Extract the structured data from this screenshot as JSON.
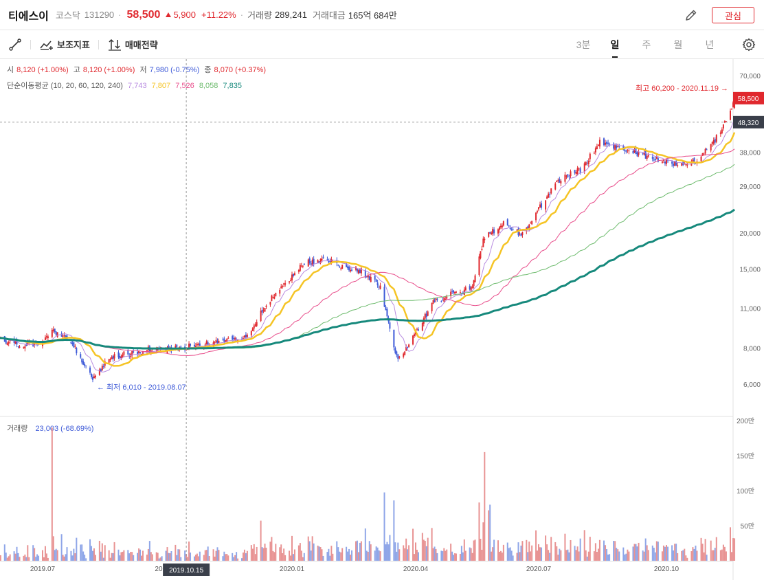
{
  "header": {
    "name": "티에스이",
    "market": "코스닥",
    "code": "131290",
    "price": "58,500",
    "change": "5,900",
    "change_pct": "+11.22%",
    "volume_label": "거래량",
    "volume": "289,241",
    "amount_label": "거래대금",
    "amount": "165억 684만",
    "interest_label": "관심"
  },
  "toolbar": {
    "indicator_label": "보조지표",
    "strategy_label": "매매전략",
    "periods": [
      "3분",
      "일",
      "주",
      "월",
      "년"
    ],
    "active_period": "일"
  },
  "legend": {
    "open_label": "시",
    "open": "8,120 (+1.00%)",
    "high_label": "고",
    "high": "8,120 (+1.00%)",
    "low_label": "저",
    "low": "7,980 (-0.75%)",
    "close_label": "종",
    "close": "8,070 (+0.37%)",
    "ma_label": "단순이동평균 (10, 20, 60, 120, 240)",
    "ma_values": [
      "7,743",
      "7,807",
      "7,526",
      "8,058",
      "7,835"
    ],
    "volume_label": "거래량",
    "volume_value": "23,003 (-68.69%)"
  },
  "chart_data": {
    "type": "candlestick",
    "price_axis": {
      "scale": "log",
      "range": [
        4800,
        76000
      ],
      "ticks": [
        6000,
        8000,
        11000,
        15000,
        20000,
        29000,
        38000,
        70000
      ],
      "tick_labels": [
        "6,000",
        "8,000",
        "11,000",
        "15,000",
        "20,000",
        "29,000",
        "38,000",
        "70,000"
      ]
    },
    "x_axis": {
      "ticks": [
        {
          "date": "2019-07-01",
          "label": "2019.07"
        },
        {
          "date": "2019-10-01",
          "label": "2019.10"
        },
        {
          "date": "2020-01-01",
          "label": "2020.01"
        },
        {
          "date": "2020-04-01",
          "label": "2020.04"
        },
        {
          "date": "2020-07-01",
          "label": "2020.07"
        },
        {
          "date": "2020-10-01",
          "label": "2020.10"
        }
      ],
      "crosshair": {
        "date": "2019-10-15",
        "label": "2019.10.15"
      }
    },
    "current_price": {
      "value": 58500,
      "label": "58,500"
    },
    "crosshair_price": {
      "value": 48320,
      "label": "48,320"
    },
    "annotations": {
      "high_text": "최고 60,200 - 2020.11.19",
      "low_text": "최저 6,010 - 2019.08.07"
    },
    "price_path": [
      {
        "date": "2019-05-20",
        "close": 8900
      },
      {
        "date": "2019-06-03",
        "close": 8500
      },
      {
        "date": "2019-06-17",
        "close": 8200
      },
      {
        "date": "2019-07-01",
        "close": 8300
      },
      {
        "date": "2019-07-08",
        "close": 9200
      },
      {
        "date": "2019-07-22",
        "close": 8400
      },
      {
        "date": "2019-08-07",
        "close": 6300
      },
      {
        "date": "2019-08-20",
        "close": 7400
      },
      {
        "date": "2019-09-03",
        "close": 7700
      },
      {
        "date": "2019-09-17",
        "close": 7900
      },
      {
        "date": "2019-10-01",
        "close": 8000
      },
      {
        "date": "2019-10-15",
        "close": 8070
      },
      {
        "date": "2019-11-01",
        "close": 8300
      },
      {
        "date": "2019-11-15",
        "close": 8500
      },
      {
        "date": "2019-11-29",
        "close": 8700
      },
      {
        "date": "2019-12-12",
        "close": 11200
      },
      {
        "date": "2019-12-26",
        "close": 13200
      },
      {
        "date": "2020-01-10",
        "close": 15800
      },
      {
        "date": "2020-01-24",
        "close": 16200
      },
      {
        "date": "2020-02-07",
        "close": 15400
      },
      {
        "date": "2020-02-21",
        "close": 14800
      },
      {
        "date": "2020-03-06",
        "close": 13000
      },
      {
        "date": "2020-03-19",
        "close": 7200
      },
      {
        "date": "2020-03-31",
        "close": 8900
      },
      {
        "date": "2020-04-14",
        "close": 11500
      },
      {
        "date": "2020-04-28",
        "close": 12300
      },
      {
        "date": "2020-05-12",
        "close": 12800
      },
      {
        "date": "2020-05-22",
        "close": 19500
      },
      {
        "date": "2020-06-05",
        "close": 21500
      },
      {
        "date": "2020-06-19",
        "close": 19800
      },
      {
        "date": "2020-07-03",
        "close": 25000
      },
      {
        "date": "2020-07-17",
        "close": 31000
      },
      {
        "date": "2020-07-31",
        "close": 33000
      },
      {
        "date": "2020-08-14",
        "close": 41000
      },
      {
        "date": "2020-08-28",
        "close": 39000
      },
      {
        "date": "2020-09-11",
        "close": 37500
      },
      {
        "date": "2020-09-25",
        "close": 36000
      },
      {
        "date": "2020-10-08",
        "close": 34500
      },
      {
        "date": "2020-10-22",
        "close": 35500
      },
      {
        "date": "2020-11-05",
        "close": 42000
      },
      {
        "date": "2020-11-16",
        "close": 52600
      },
      {
        "date": "2020-11-19",
        "close": 58500
      }
    ],
    "moving_averages": [
      {
        "period": 10,
        "color": "#b88be0",
        "width": 1
      },
      {
        "period": 20,
        "color": "#f5c425",
        "width": 2.5
      },
      {
        "period": 60,
        "color": "#e84c8a",
        "width": 1
      },
      {
        "period": 120,
        "color": "#6dbb6d",
        "width": 1
      },
      {
        "period": 240,
        "color": "#16897c",
        "width": 3
      }
    ],
    "volume_axis": {
      "range": [
        0,
        200
      ],
      "unit": "만",
      "ticks": [
        50,
        100,
        150,
        200
      ],
      "tick_labels": [
        "50만",
        "100만",
        "150만",
        "200만"
      ]
    },
    "volume_spikes": [
      {
        "date": "2019-07-08",
        "value": 190
      },
      {
        "date": "2019-07-09",
        "value": 35
      },
      {
        "date": "2019-07-15",
        "value": 38
      },
      {
        "date": "2020-05-22",
        "value": 155
      },
      {
        "date": "2020-05-25",
        "value": 72
      },
      {
        "date": "2020-05-26",
        "value": 80
      },
      {
        "date": "2020-11-19",
        "value": 32
      }
    ]
  },
  "colors": {
    "up": "#e0282e",
    "down": "#3f5bd8",
    "accent": "#e0282e"
  }
}
